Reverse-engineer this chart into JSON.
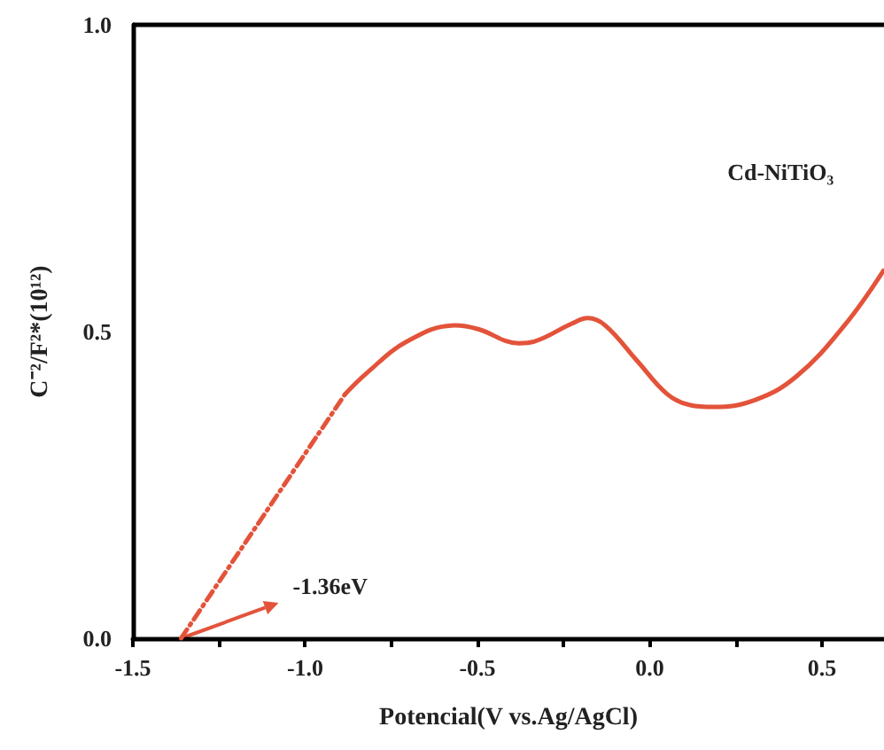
{
  "chart_data": {
    "type": "line",
    "xlabel": "Potencial(V vs.Ag/AgCl)",
    "ylabel": "C⁻²/F²*(10¹²)",
    "xlim": [
      -1.5,
      0.68
    ],
    "xticks": [
      -1.5,
      {
        "value": -1,
        "label": "-1.0"
      },
      -0.5,
      {
        "value": 0,
        "label": "0.0"
      },
      0.5
    ],
    "ylim": [
      0,
      1.0
    ],
    "yticks": [
      {
        "value": 0,
        "label": "0.0"
      },
      0.5,
      {
        "value": 1,
        "label": "1.0"
      }
    ],
    "grid": false,
    "marker": "none",
    "series": [
      {
        "name": "Cd-NiTiO₃",
        "color": "#e3533a",
        "line_style": "solid",
        "x": [
          -0.884,
          -0.822,
          -0.704,
          -0.565,
          -0.498,
          -0.38,
          -0.334,
          -0.226,
          -0.18,
          -0.129,
          -0.036,
          0.051,
          0.118,
          0.185,
          0.308,
          0.426,
          0.565,
          0.678
        ],
        "values": [
          0.398,
          0.432,
          0.484,
          0.51,
          0.504,
          0.481,
          0.484,
          0.513,
          0.522,
          0.51,
          0.452,
          0.398,
          0.38,
          0.377,
          0.389,
          0.427,
          0.51,
          0.599
        ]
      },
      {
        "color": "#e3533a",
        "line_style": "dashed",
        "x": [
          -1.36,
          -0.884
        ],
        "values": [
          0,
          0.398
        ]
      }
    ],
    "annotations": [
      {
        "text": "-1.36eV",
        "x": -1.36,
        "y": 0
      }
    ]
  }
}
